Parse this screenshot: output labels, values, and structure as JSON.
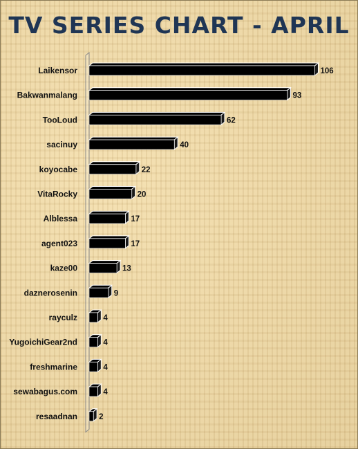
{
  "chart_data": {
    "type": "bar",
    "orientation": "horizontal",
    "title": "TV SERIES CHART - APRIL",
    "xlabel": "",
    "ylabel": "",
    "categories": [
      "Laikensor",
      "Bakwanmalang",
      "TooLoud",
      "sacinuy",
      "koyocabe",
      "VitaRocky",
      "Alblessa",
      "agent023",
      "kaze00",
      "daznerosenin",
      "rayculz",
      "YugoichiGear2nd",
      "freshmarine",
      "sewabagus.com",
      "resaadnan"
    ],
    "values": [
      106,
      93,
      62,
      40,
      22,
      20,
      17,
      17,
      13,
      9,
      4,
      4,
      4,
      4,
      2
    ],
    "xlim": [
      0,
      106
    ],
    "grid": false,
    "legend": "none",
    "data_labels": true,
    "bar_style": "3d",
    "colors": {
      "bar": "#000000",
      "bar_highlight": "#ffffff",
      "title": "#1f3554",
      "axis": "#8a8a8a"
    }
  }
}
